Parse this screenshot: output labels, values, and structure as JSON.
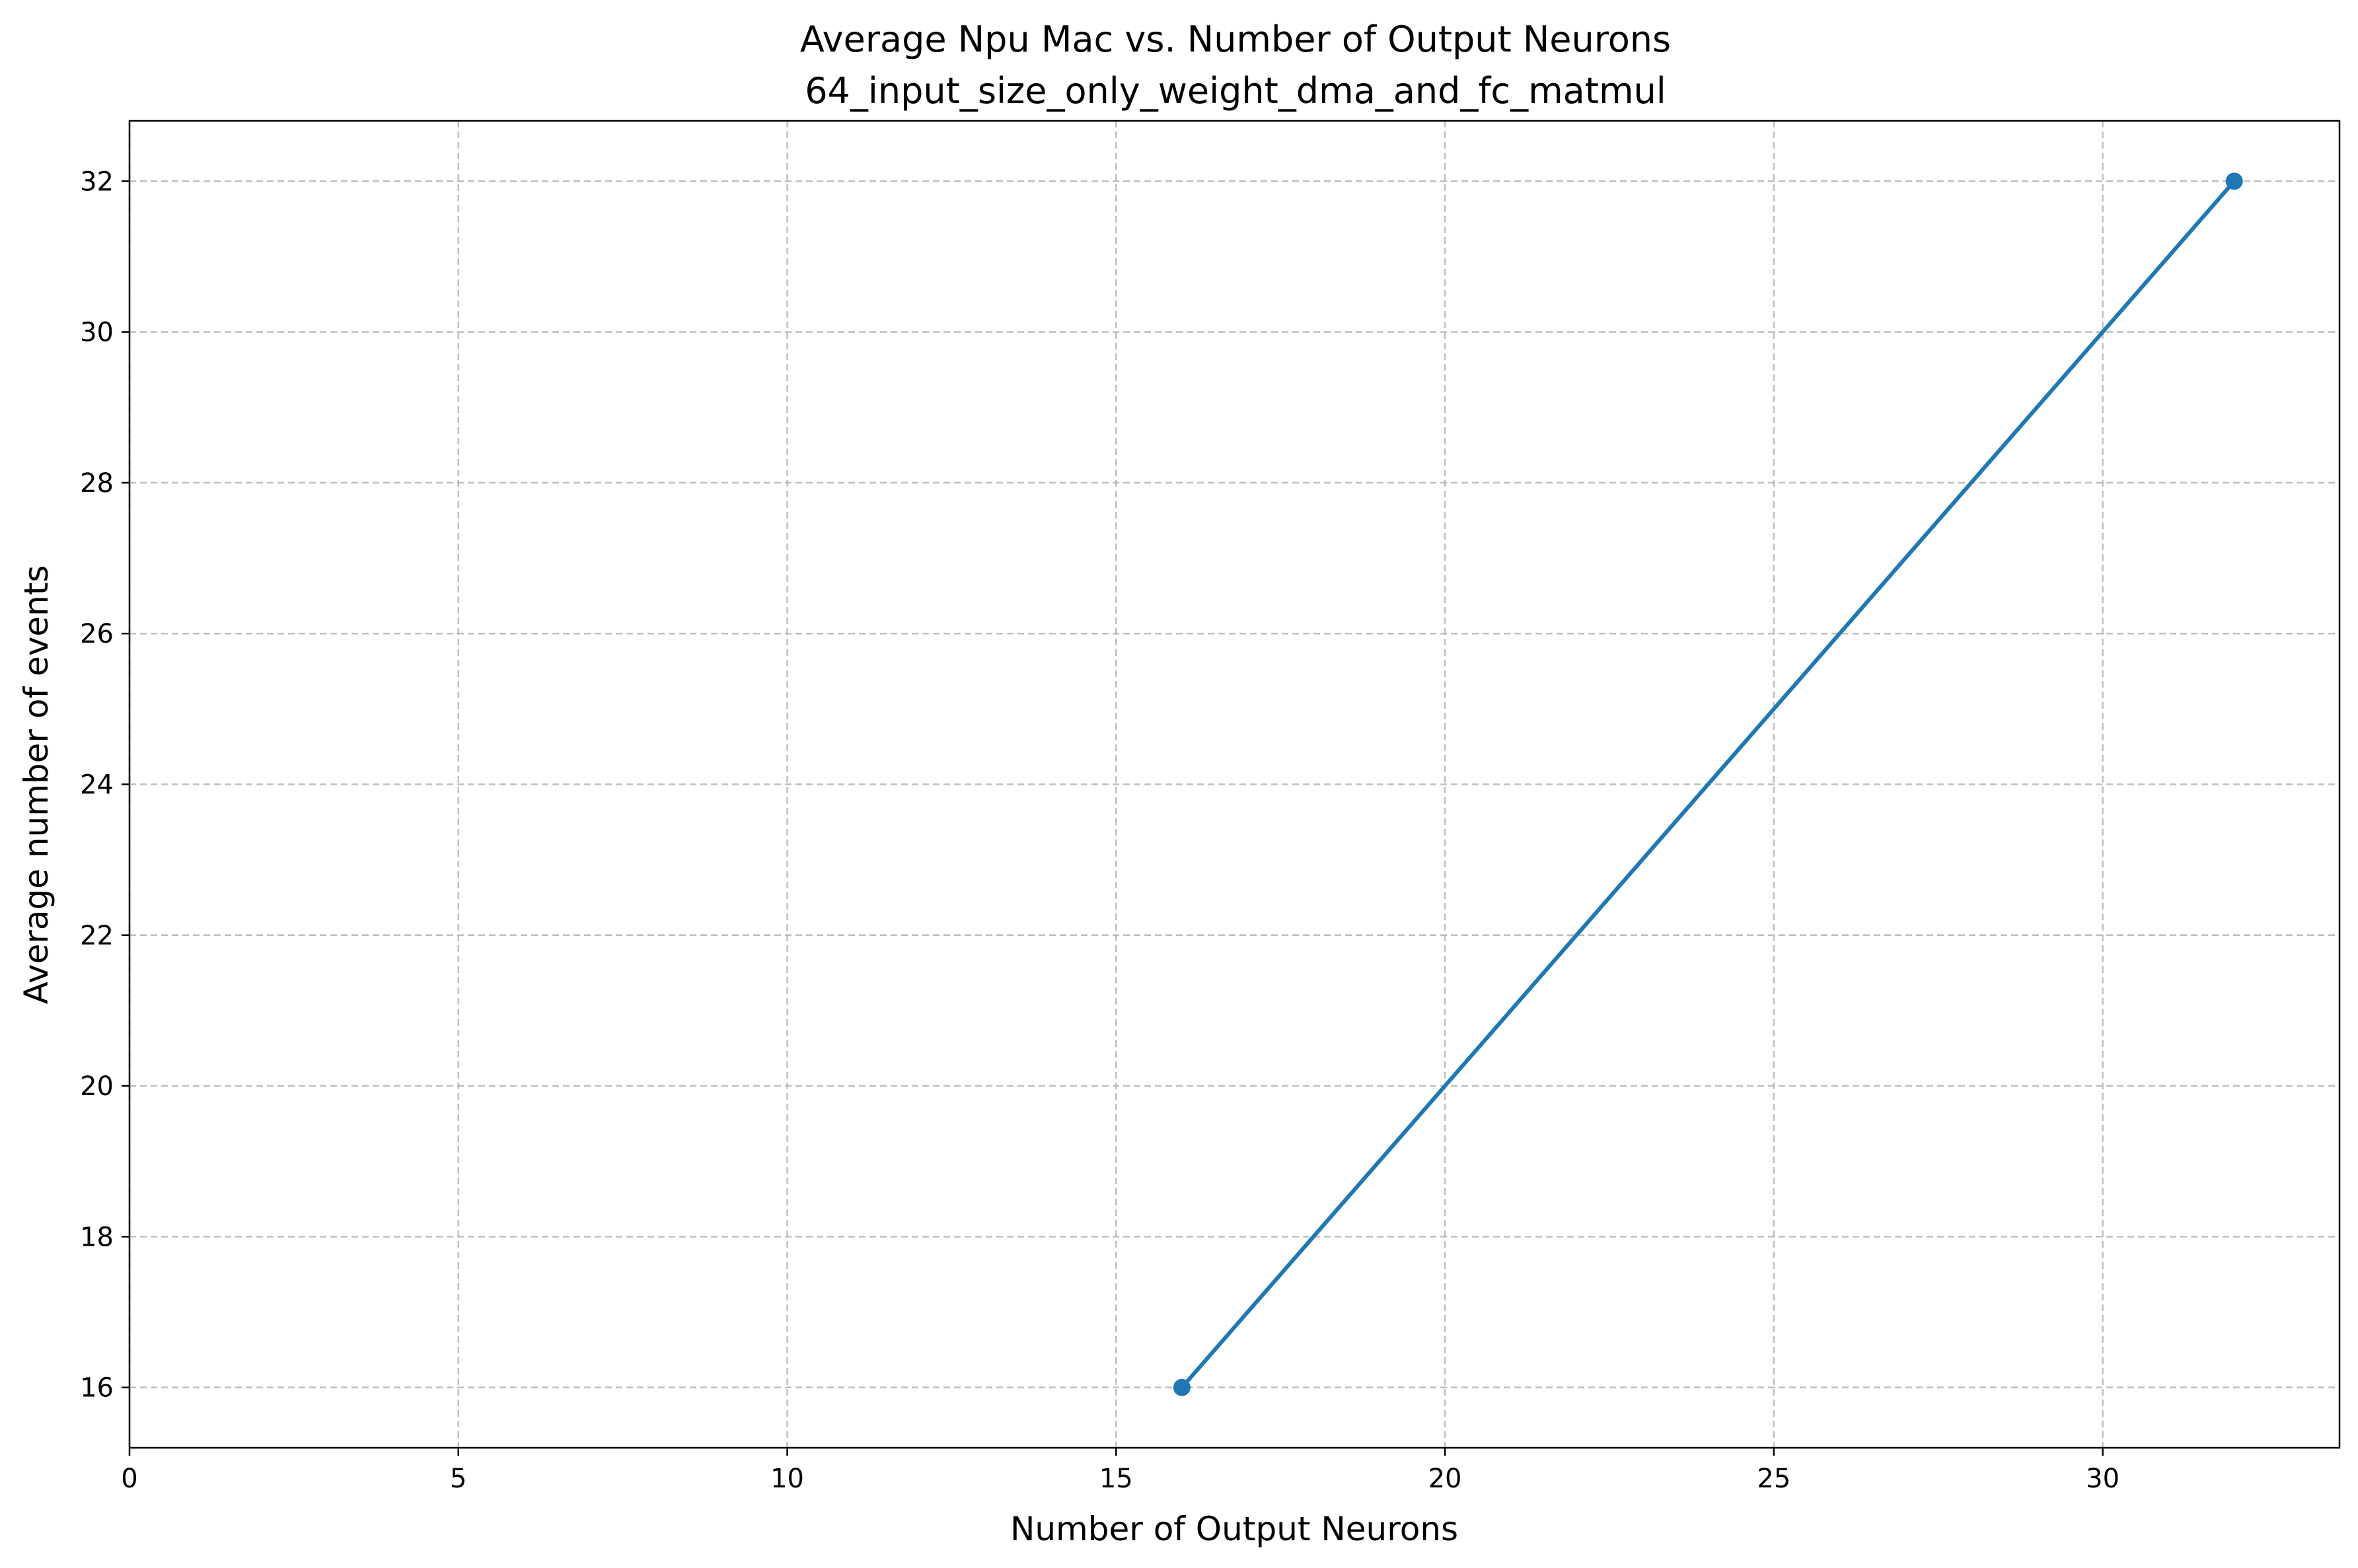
{
  "chart_data": {
    "type": "line",
    "title": "Average Npu Mac vs. Number of Output Neurons",
    "subtitle": "64_input_size_only_weight_dma_and_fc_matmul",
    "xlabel": "Number of Output Neurons",
    "ylabel": "Average number of events",
    "xlim": [
      0,
      33.6
    ],
    "ylim": [
      15.2,
      32.8
    ],
    "xticks": [
      0,
      5,
      10,
      15,
      20,
      25,
      30
    ],
    "yticks": [
      16,
      18,
      20,
      22,
      24,
      26,
      28,
      30,
      32
    ],
    "grid": true,
    "series": [
      {
        "color": "#1f77b4",
        "marker": "circle",
        "x": [
          16,
          32
        ],
        "y": [
          16,
          32
        ]
      }
    ]
  }
}
